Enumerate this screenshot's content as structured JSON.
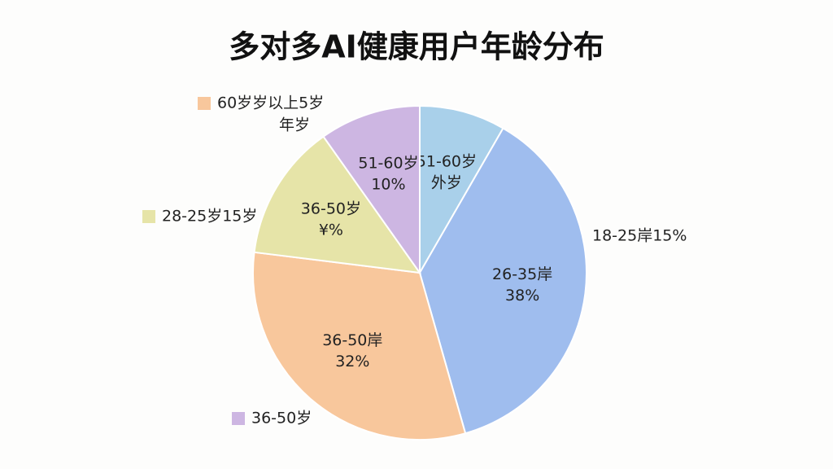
{
  "chart_data": {
    "type": "pie",
    "title": "多对多AI健康用户年龄分布",
    "categories": [
      "51-60岁",
      "26-35岸",
      "36-50岸",
      "36-50岁",
      "51-60岁"
    ],
    "category_notes": [
      "外岁",
      null,
      null,
      "¥%",
      null
    ],
    "values": [
      8.5,
      38,
      32,
      13.5,
      10
    ],
    "value_labels": [
      null,
      "38%",
      "32%",
      null,
      "10%"
    ],
    "colors": [
      "#a9d0ea",
      "#9fbdee",
      "#f8c79c",
      "#e6e4a8",
      "#cdb6e2"
    ],
    "annotations": [
      {
        "lines": [
          "60岁岁以上5岁",
          "年岁"
        ],
        "color": "#f8c79c"
      },
      {
        "lines": [
          "28-25岁15岁"
        ],
        "color": "#e6e4a8"
      },
      {
        "lines": [
          "18-25岸15%"
        ]
      },
      {
        "lines": [
          "36-50岁"
        ],
        "color": "#cdb6e2"
      }
    ]
  }
}
